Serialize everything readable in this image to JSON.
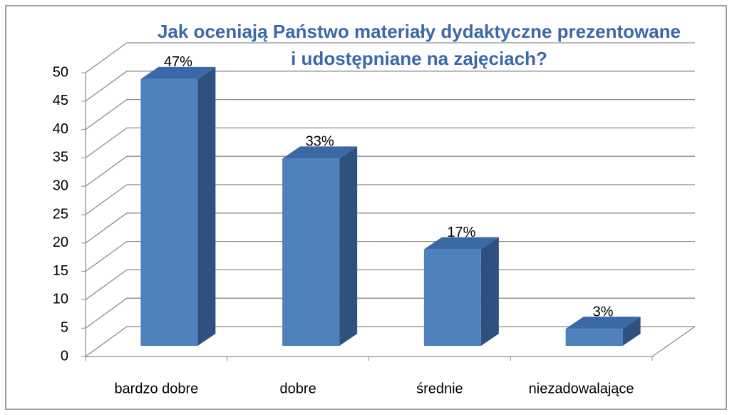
{
  "chart_data": {
    "type": "bar3d",
    "title": [
      "Jak oceniają Państwo materiały dydaktyczne prezentowane",
      "i udostępniane na zajęciach?"
    ],
    "categories": [
      "bardzo dobre",
      "dobre",
      "średnie",
      "niezadowalające"
    ],
    "values": [
      47,
      33,
      17,
      3
    ],
    "value_labels": [
      "47%",
      "33%",
      "17%",
      "3%"
    ],
    "color": "#4f81bd",
    "ylim": [
      0,
      50
    ],
    "yticks": [
      0,
      5,
      10,
      15,
      20,
      25,
      30,
      35,
      40,
      45,
      50
    ],
    "grid": true
  }
}
